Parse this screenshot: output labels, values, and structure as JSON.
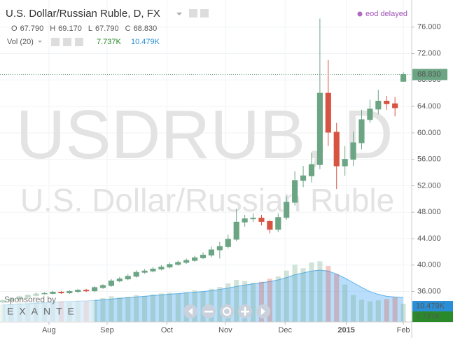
{
  "chart_data": {
    "type": "candlestick",
    "title": "U.S. Dollar/Russian Ruble, D, FX",
    "status": "eod delayed",
    "watermark": {
      "symbol": "USDRUB, D",
      "name": "U.S. Dollar/Russian Ruble"
    },
    "ohlc_legend": [
      {
        "key": "O",
        "value": "67.790"
      },
      {
        "key": "H",
        "value": "69.170"
      },
      {
        "key": "L",
        "value": "67.790"
      },
      {
        "key": "C",
        "value": "68.830"
      }
    ],
    "volume_legend": {
      "title": "Vol (20)",
      "volume": "7.737K",
      "volume_ma": "10.479K"
    },
    "sponsor": {
      "caption": "Sponsored by",
      "name": "EXANTE"
    },
    "up_color": "#6ba583",
    "down_color": "#d75442",
    "x": [
      1,
      4,
      7,
      10,
      13,
      16,
      19,
      22,
      25,
      28,
      31,
      34,
      37,
      40,
      43,
      46,
      49,
      52,
      55,
      58,
      61,
      64,
      67,
      70,
      73,
      76,
      79,
      82,
      85,
      88,
      91,
      94,
      97,
      100,
      103,
      106,
      109,
      112,
      115,
      118,
      121,
      124,
      127,
      130,
      133,
      136,
      139,
      142,
      145
    ],
    "open": [
      34.4,
      34.6,
      34.9,
      35.2,
      35.4,
      35.6,
      35.7,
      35.9,
      35.8,
      36.0,
      36.2,
      36.1,
      36.6,
      36.9,
      37.6,
      37.9,
      38.3,
      38.9,
      39.1,
      39.4,
      39.7,
      40.1,
      40.4,
      40.7,
      41.1,
      41.5,
      42.3,
      42.8,
      43.9,
      46.5,
      47.0,
      47.1,
      46.6,
      45.4,
      47.2,
      49.5,
      52.8,
      53.5,
      55.2,
      66.0,
      60.1,
      55.0,
      56.0,
      58.5,
      62.0,
      63.6,
      64.8,
      64.4,
      67.79
    ],
    "high": [
      34.8,
      35.1,
      35.4,
      35.6,
      35.8,
      35.9,
      36.1,
      36.1,
      36.2,
      36.4,
      36.4,
      36.8,
      37.1,
      37.9,
      38.2,
      38.6,
      39.2,
      39.4,
      39.7,
      40.0,
      40.4,
      40.7,
      41.0,
      41.4,
      41.9,
      42.8,
      43.5,
      44.6,
      48.5,
      47.6,
      47.8,
      47.6,
      46.8,
      47.8,
      50.4,
      54.2,
      55.0,
      57.0,
      77.3,
      71.0,
      61.5,
      58.0,
      60.2,
      63.5,
      65.0,
      66.5,
      65.6,
      65.4,
      69.17
    ],
    "low": [
      34.2,
      34.4,
      34.7,
      35.0,
      35.2,
      35.4,
      35.5,
      35.6,
      35.6,
      35.8,
      35.9,
      35.9,
      36.4,
      36.7,
      37.4,
      37.7,
      38.1,
      38.7,
      38.9,
      39.2,
      39.5,
      39.9,
      40.2,
      40.5,
      40.9,
      41.2,
      41.0,
      42.5,
      43.6,
      45.8,
      46.5,
      46.0,
      44.8,
      45.0,
      46.8,
      49.0,
      51.8,
      52.5,
      54.5,
      58.0,
      51.5,
      53.5,
      55.0,
      57.5,
      61.5,
      62.8,
      63.5,
      62.5,
      67.79
    ],
    "close": [
      34.6,
      34.9,
      35.2,
      35.4,
      35.6,
      35.7,
      35.9,
      35.8,
      36.0,
      36.2,
      36.1,
      36.6,
      36.9,
      37.6,
      37.9,
      38.3,
      38.9,
      39.1,
      39.4,
      39.7,
      40.1,
      40.4,
      40.7,
      41.1,
      41.5,
      42.3,
      42.8,
      43.9,
      46.5,
      47.0,
      47.1,
      46.6,
      45.4,
      47.2,
      49.5,
      52.8,
      53.5,
      55.2,
      66.0,
      60.1,
      55.0,
      56.0,
      58.5,
      62.0,
      63.6,
      64.8,
      64.4,
      63.8,
      68.83
    ],
    "volume": [
      7.5,
      7.8,
      8.2,
      8.0,
      8.5,
      8.3,
      8.8,
      9.0,
      8.6,
      9.2,
      9.0,
      9.5,
      10.2,
      11.0,
      10.5,
      10.8,
      11.5,
      11.0,
      11.8,
      12.2,
      12.5,
      12.0,
      12.8,
      13.5,
      13.0,
      14.2,
      15.0,
      16.5,
      18.0,
      17.5,
      16.8,
      17.2,
      18.5,
      19.5,
      22.0,
      24.5,
      23.0,
      25.5,
      26.0,
      24.0,
      20.5,
      16.0,
      11.5,
      9.5,
      8.8,
      9.2,
      9.8,
      10.5,
      7.737
    ],
    "volume_ma": [
      7.2,
      7.4,
      7.6,
      7.8,
      8.0,
      8.2,
      8.4,
      8.6,
      8.7,
      8.9,
      9.0,
      9.2,
      9.5,
      9.8,
      10.1,
      10.4,
      10.7,
      11.0,
      11.3,
      11.6,
      11.9,
      12.1,
      12.4,
      12.7,
      13.0,
      13.4,
      13.9,
      14.5,
      15.2,
      15.8,
      16.3,
      16.8,
      17.3,
      18.0,
      19.0,
      20.2,
      21.0,
      21.8,
      22.2,
      21.8,
      20.5,
      18.8,
      16.8,
      14.8,
      13.0,
      11.8,
      11.0,
      10.7,
      10.479
    ],
    "xlim": [
      0,
      148
    ],
    "xticks": [
      {
        "value": 17.6,
        "label": "Aug"
      },
      {
        "value": 38.5,
        "label": "Sep"
      },
      {
        "value": 60,
        "label": "Oct"
      },
      {
        "value": 81,
        "label": "Nov"
      },
      {
        "value": 102.5,
        "label": "Dec"
      },
      {
        "value": 124.5,
        "label": "2015"
      },
      {
        "value": 145,
        "label": "Feb"
      }
    ],
    "ylim": [
      31.4,
      80.1
    ],
    "yticks": [
      {
        "value": 36,
        "label": "36.000"
      },
      {
        "value": 40,
        "label": "40.000"
      },
      {
        "value": 44,
        "label": "44.000"
      },
      {
        "value": 48,
        "label": "48.000"
      },
      {
        "value": 52,
        "label": "52.000"
      },
      {
        "value": 56,
        "label": "56.000"
      },
      {
        "value": 60,
        "label": "60.000"
      },
      {
        "value": 64,
        "label": "64.000"
      },
      {
        "value": 68,
        "label": "68.000"
      },
      {
        "value": 72,
        "label": "72.000"
      },
      {
        "value": 76,
        "label": "76.000"
      }
    ],
    "y2lim": [
      0,
      30
    ]
  }
}
